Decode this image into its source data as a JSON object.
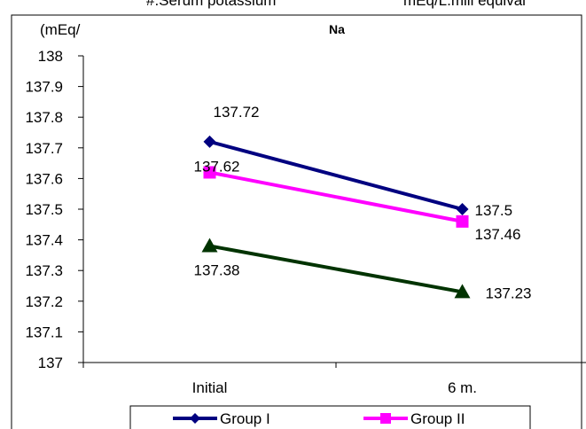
{
  "header": {
    "left_text": "#.Serum potassium",
    "right_text": "mEq/L.mill equival"
  },
  "chart_data": {
    "type": "line",
    "title": "Na",
    "ylabel": "(mEq/",
    "xlabel": "",
    "categories": [
      "Initial",
      "6 m."
    ],
    "ylim": [
      137,
      138
    ],
    "y_ticks": [
      "137",
      "137.1",
      "137.2",
      "137.3",
      "137.4",
      "137.5",
      "137.6",
      "137.7",
      "137.8",
      "137.9",
      "138"
    ],
    "grid": false,
    "legend_position": "bottom",
    "series": [
      {
        "name": "Group I",
        "values": [
          137.72,
          137.5
        ],
        "labels": [
          "137.72",
          "137.5"
        ],
        "color": "#000080",
        "marker": "diamond"
      },
      {
        "name": "Group II",
        "values": [
          137.62,
          137.46
        ],
        "labels": [
          "137.62",
          "137.46"
        ],
        "color": "#ff00ff",
        "marker": "square"
      },
      {
        "name": "",
        "values": [
          137.38,
          137.23
        ],
        "labels": [
          "137.38",
          "137.23"
        ],
        "color": "#003300",
        "marker": "triangle"
      }
    ]
  }
}
